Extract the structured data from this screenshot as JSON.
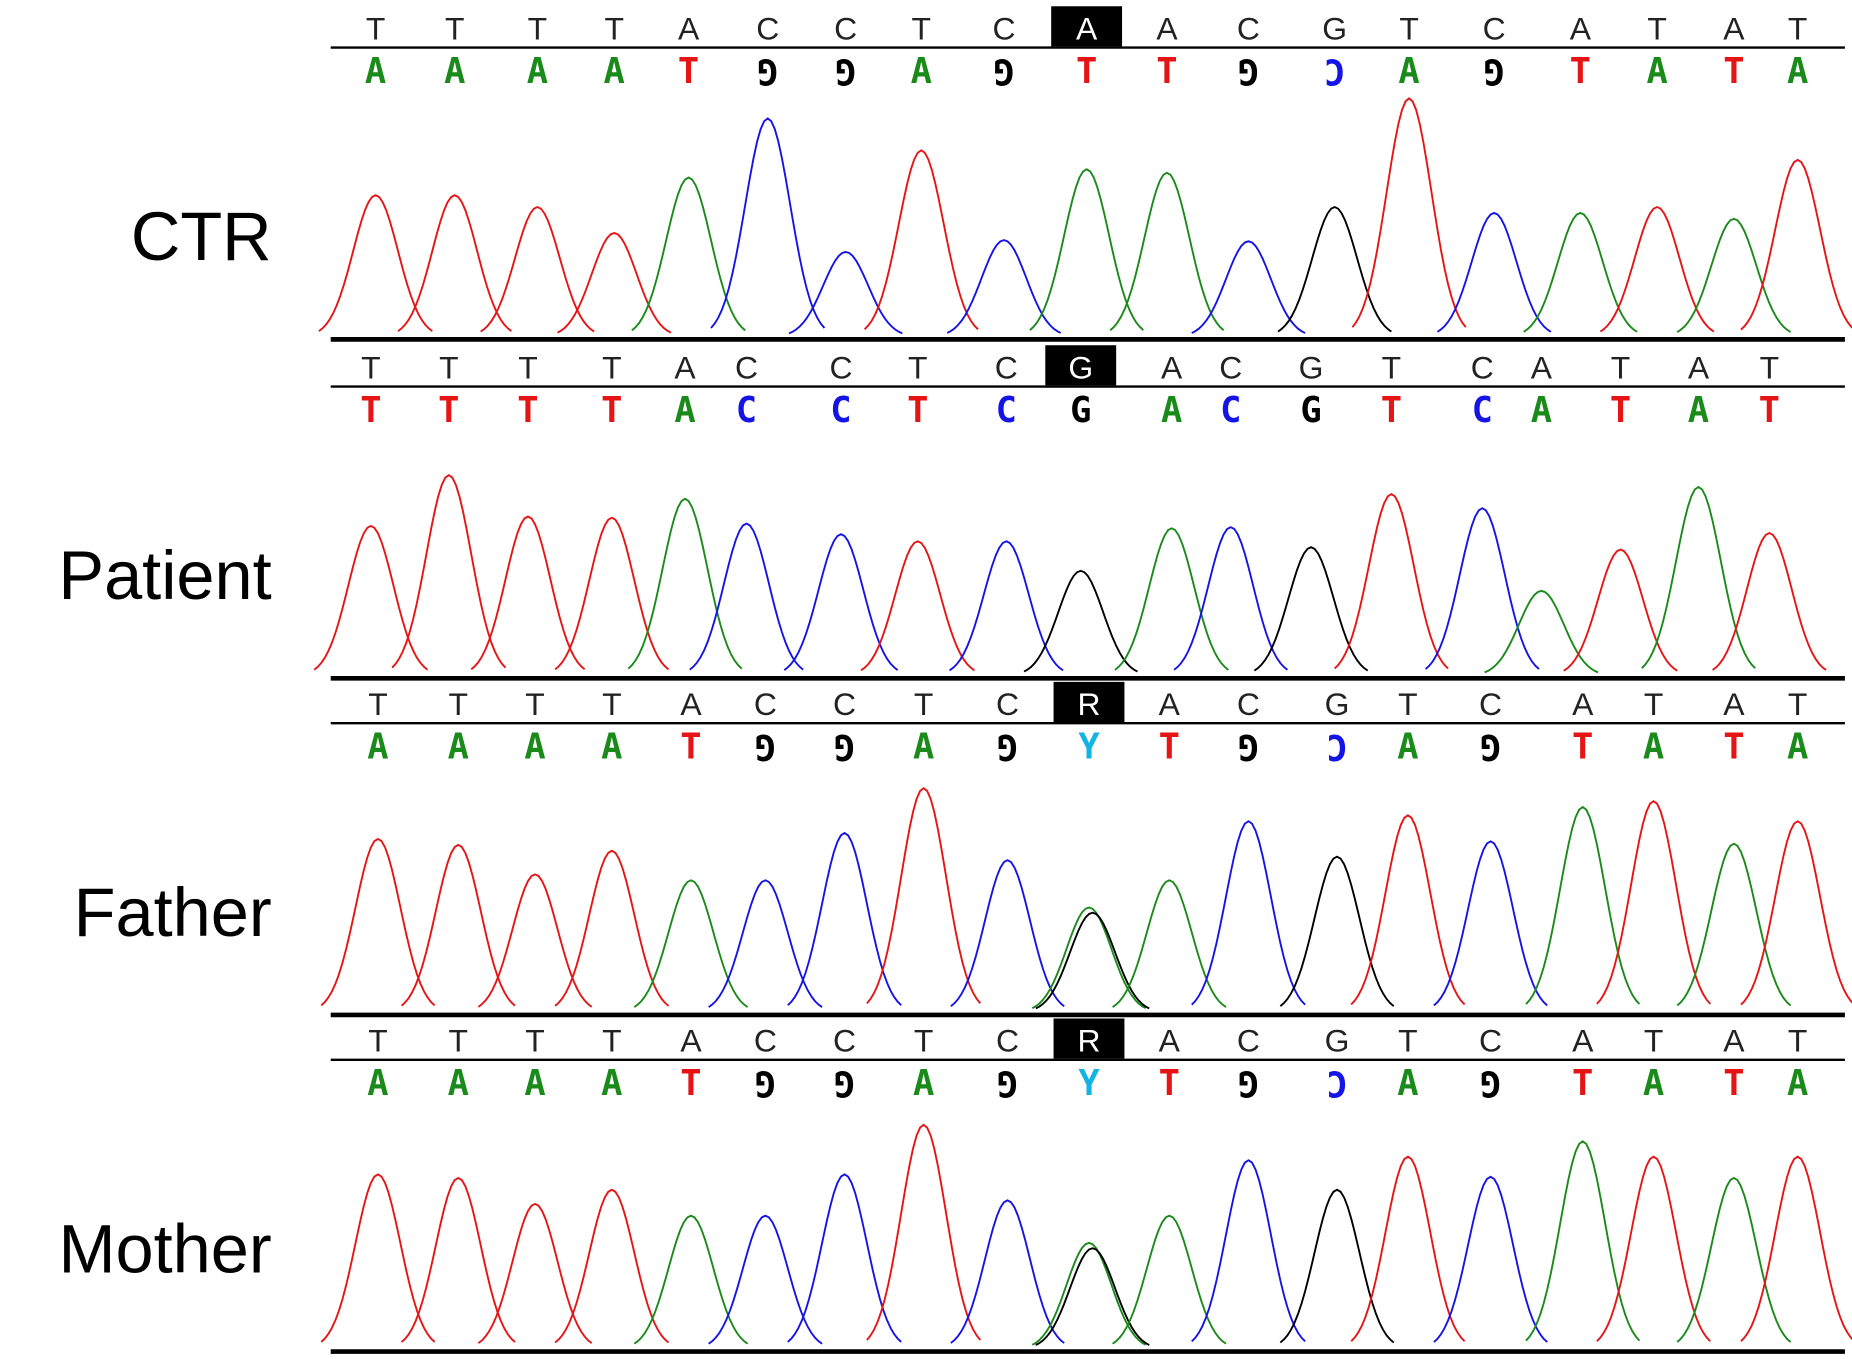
{
  "base_colors": {
    "A": "#1a8a1a",
    "C": "#1414e6",
    "G": "#000000",
    "T": "#e61414",
    "Y": "#12b4e6"
  },
  "panels": [
    {
      "label": "CTR",
      "reversed": true,
      "highlight": 9,
      "reference": [
        "T",
        "T",
        "T",
        "T",
        "A",
        "C",
        "C",
        "T",
        "C",
        "A",
        "A",
        "C",
        "G",
        "T",
        "C",
        "A",
        "T",
        "A",
        "T"
      ],
      "calls": [
        "A",
        "A",
        "A",
        "A",
        "T",
        "G",
        "G",
        "A",
        "G",
        "T",
        "T",
        "G",
        "C",
        "A",
        "G",
        "T",
        "A",
        "T",
        "A"
      ],
      "peak_heights": [
        120,
        120,
        110,
        88,
        135,
        185,
        72,
        158,
        82,
        142,
        139,
        81,
        110,
        202,
        105,
        105,
        110,
        100,
        150
      ]
    },
    {
      "label": "Patient",
      "reversed": false,
      "highlight": 9,
      "reference": [
        "T",
        "T",
        "T",
        "T",
        "A",
        "C",
        "C",
        "T",
        "C",
        "G",
        "A",
        "C",
        "G",
        "T",
        "C",
        "A",
        "T",
        "A",
        "T"
      ],
      "calls": [
        "T",
        "T",
        "T",
        "T",
        "A",
        "C",
        "C",
        "T",
        "C",
        "G",
        "A",
        "C",
        "G",
        "T",
        "C",
        "A",
        "T",
        "A",
        "T"
      ],
      "peak_heights": [
        127,
        170,
        135,
        134,
        150,
        129,
        120,
        114,
        114,
        89,
        125,
        126,
        109,
        154,
        142,
        72,
        107,
        160,
        121
      ]
    },
    {
      "label": "Father",
      "reversed": true,
      "highlight": 9,
      "reference": [
        "T",
        "T",
        "T",
        "T",
        "A",
        "C",
        "C",
        "T",
        "C",
        "R",
        "A",
        "C",
        "G",
        "T",
        "C",
        "A",
        "T",
        "A",
        "T"
      ],
      "calls": [
        "A",
        "A",
        "A",
        "A",
        "T",
        "G",
        "G",
        "A",
        "G",
        "Y",
        "T",
        "G",
        "C",
        "A",
        "G",
        "T",
        "A",
        "T",
        "A"
      ],
      "peak_heights": [
        147,
        142,
        117,
        137,
        112,
        112,
        152,
        190,
        129,
        89,
        112,
        162,
        132,
        167,
        145,
        174,
        179,
        143,
        162
      ]
    },
    {
      "label": "Mother",
      "reversed": true,
      "highlight": 9,
      "reference": [
        "T",
        "T",
        "T",
        "T",
        "A",
        "C",
        "C",
        "T",
        "C",
        "R",
        "A",
        "C",
        "G",
        "T",
        "C",
        "A",
        "T",
        "A",
        "T"
      ],
      "calls": [
        "A",
        "A",
        "A",
        "A",
        "T",
        "G",
        "G",
        "A",
        "G",
        "Y",
        "T",
        "G",
        "C",
        "A",
        "G",
        "T",
        "A",
        "T",
        "A"
      ],
      "peak_heights": [
        148,
        145,
        123,
        135,
        113,
        113,
        148,
        190,
        126,
        90,
        113,
        160,
        135,
        163,
        146,
        176,
        163,
        145,
        163
      ]
    }
  ]
}
